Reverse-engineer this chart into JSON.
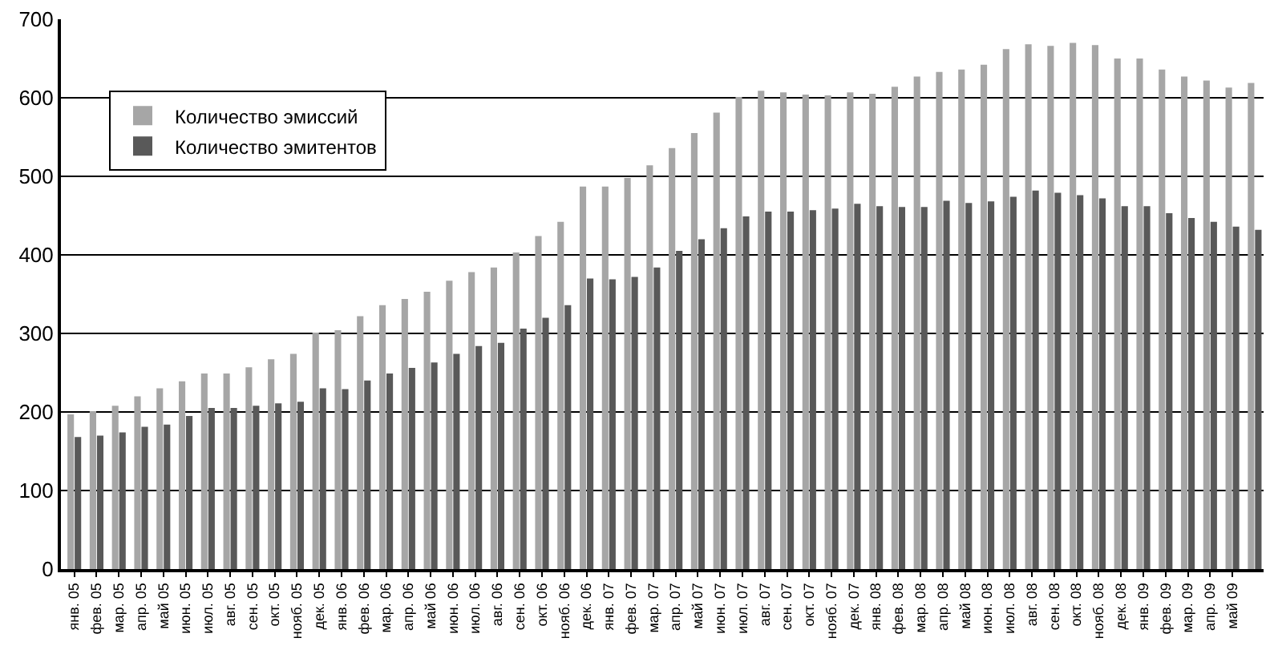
{
  "chart_data": {
    "type": "bar",
    "categories": [
      "янв. 05",
      "фев. 05",
      "мар. 05",
      "апр. 05",
      "май 05",
      "июн. 05",
      "июл. 05",
      "авг. 05",
      "сен. 05",
      "окт. 05",
      "нояб. 05",
      "дек. 05",
      "янв. 06",
      "фев. 06",
      "мар. 06",
      "апр. 06",
      "май 06",
      "июн. 06",
      "июл. 06",
      "авг. 06",
      "сен. 06",
      "окт. 06",
      "нояб. 06",
      "дек. 06",
      "янв. 07",
      "фев. 07",
      "мар. 07",
      "апр. 07",
      "май 07",
      "июн. 07",
      "июл. 07",
      "авг. 07",
      "сен. 07",
      "окт. 07",
      "нояб. 07",
      "дек. 07",
      "янв. 08",
      "фев. 08",
      "мар. 08",
      "апр. 08",
      "май 08",
      "июн. 08",
      "июл. 08",
      "авг. 08",
      "сен. 08",
      "окт. 08",
      "нояб. 08",
      "дек. 08",
      "янв. 09",
      "фев. 09",
      "мар. 09",
      "апр. 09",
      "май 09",
      null
    ],
    "series": [
      {
        "name": "Количество эмиссий",
        "color": "#a6a6a6",
        "values": [
          197,
          201,
          208,
          220,
          230,
          239,
          249,
          249,
          257,
          267,
          274,
          301,
          304,
          322,
          336,
          344,
          353,
          367,
          378,
          384,
          403,
          424,
          442,
          487,
          487,
          498,
          514,
          536,
          555,
          581,
          601,
          609,
          607,
          604,
          603,
          607,
          605,
          614,
          627,
          633,
          636,
          642,
          662,
          668,
          666,
          670,
          667,
          650,
          650,
          636,
          627,
          622,
          613,
          619
        ]
      },
      {
        "name": "Количество эмитентов",
        "color": "#595959",
        "values": [
          168,
          170,
          174,
          181,
          184,
          195,
          205,
          205,
          208,
          211,
          213,
          230,
          229,
          240,
          249,
          256,
          263,
          274,
          284,
          288,
          306,
          320,
          336,
          370,
          369,
          372,
          384,
          405,
          420,
          434,
          449,
          455,
          455,
          457,
          459,
          465,
          462,
          461,
          461,
          469,
          466,
          468,
          474,
          482,
          479,
          476,
          472,
          462,
          462,
          453,
          447,
          442,
          436,
          432
        ]
      }
    ],
    "ylim": [
      0,
      700
    ],
    "yticks": [
      0,
      100,
      200,
      300,
      400,
      500,
      600,
      700
    ],
    "grid": "y",
    "legend": "top left"
  }
}
